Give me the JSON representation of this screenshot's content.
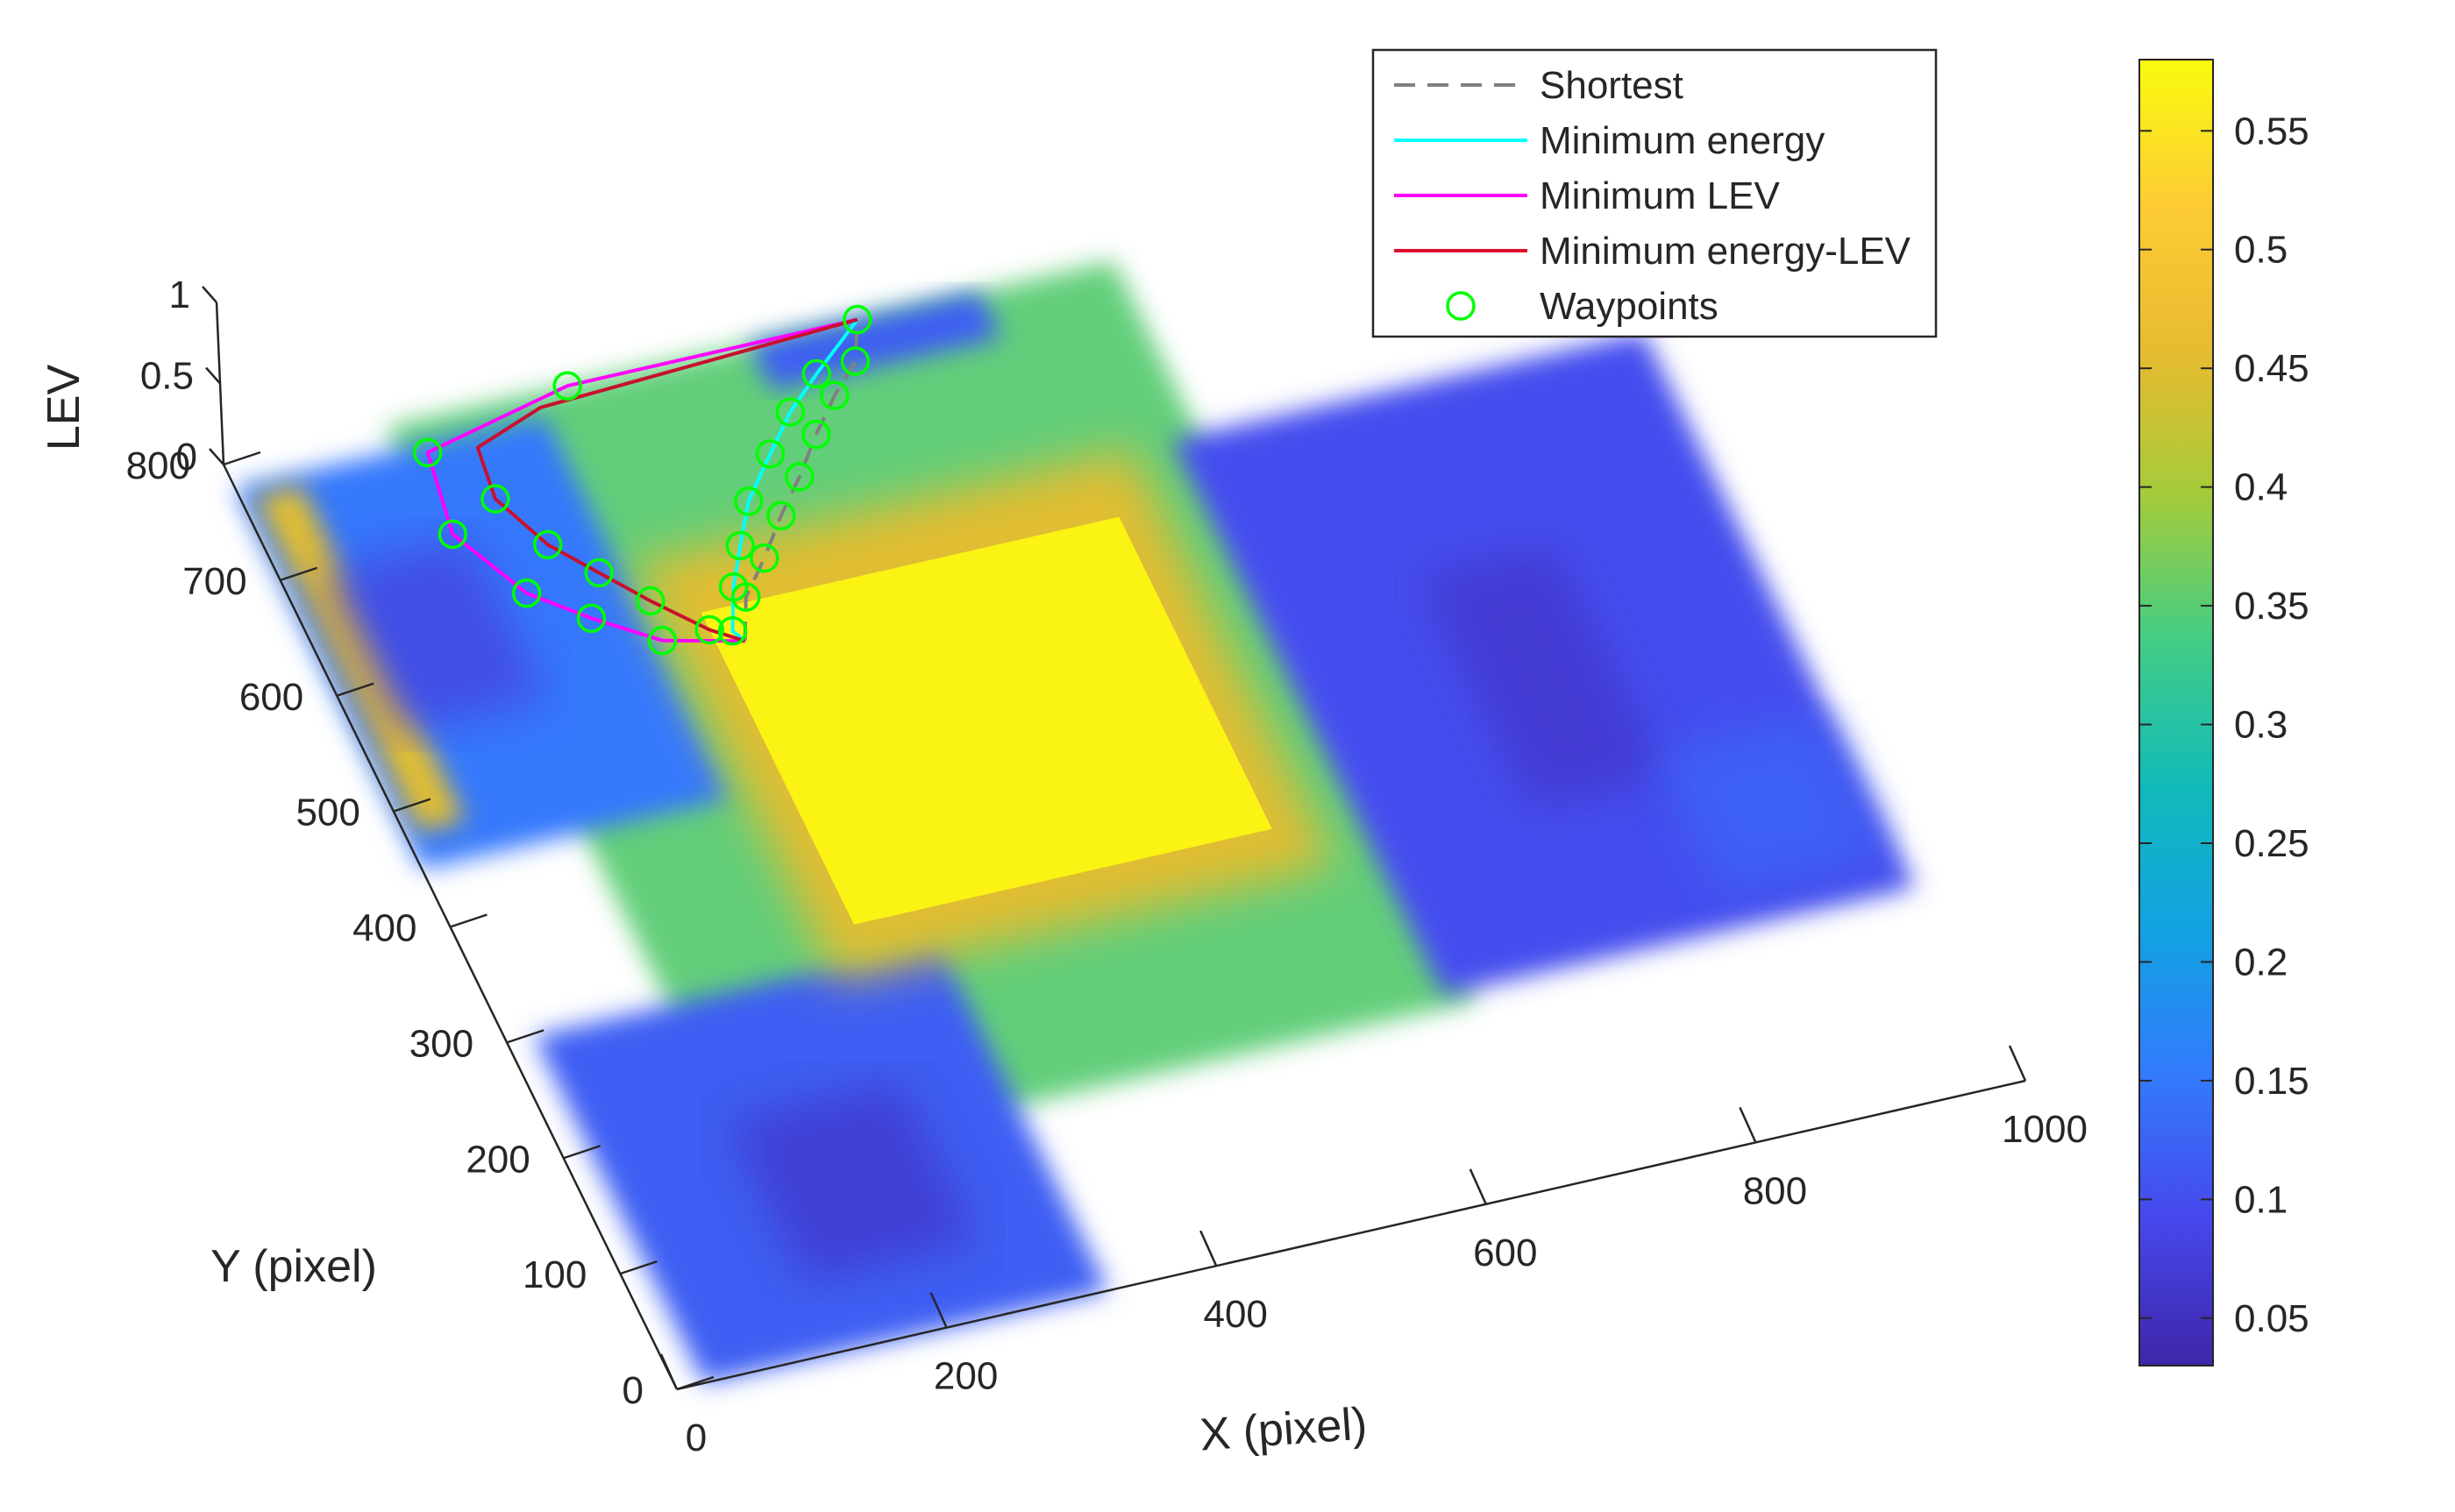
{
  "chart_data": {
    "type": "surface3d",
    "title": "",
    "xlabel": "X (pixel)",
    "ylabel": "Y (pixel)",
    "zlabel": "LEV",
    "xlim": [
      0,
      1000
    ],
    "ylim": [
      0,
      800
    ],
    "zlim": [
      0,
      1
    ],
    "x_ticks": [
      0,
      200,
      400,
      600,
      800,
      1000
    ],
    "x_tick_labels": [
      "0",
      "200",
      "400",
      "600",
      "800",
      "1000"
    ],
    "y_ticks": [
      0,
      100,
      200,
      300,
      400,
      500,
      600,
      700,
      800
    ],
    "y_tick_labels": [
      "0",
      "100",
      "200",
      "300",
      "400",
      "500",
      "600",
      "700",
      "800"
    ],
    "z_ticks": [
      0,
      0.5,
      1
    ],
    "z_tick_labels": [
      "0",
      "0.5",
      "1"
    ],
    "grid": false,
    "legend": {
      "position": "top-right",
      "entries": [
        {
          "label": "Shortest",
          "color": "#808080",
          "style": "dashed"
        },
        {
          "label": "Minimum energy",
          "color": "#00ffff",
          "style": "solid"
        },
        {
          "label": "Minimum LEV",
          "color": "#ff00ff",
          "style": "solid"
        },
        {
          "label": "Minimum energy-LEV",
          "color": "#ff0000",
          "style": "solid"
        },
        {
          "label": "Waypoints",
          "color": "#00ff00",
          "style": "circle"
        }
      ]
    },
    "colorbar": {
      "colormap": "parula",
      "min": 0.03,
      "max": 0.58,
      "ticks": [
        0.05,
        0.1,
        0.15,
        0.2,
        0.25,
        0.3,
        0.35,
        0.4,
        0.45,
        0.5,
        0.55
      ],
      "tick_labels": [
        "0.05",
        "0.1",
        "0.15",
        "0.2",
        "0.25",
        "0.3",
        "0.35",
        "0.4",
        "0.45",
        "0.5",
        "0.55"
      ]
    },
    "surface_regions": [
      {
        "name": "central-block",
        "x": [
          270,
          580
        ],
        "y": [
          330,
          600
        ],
        "value": 0.57
      },
      {
        "name": "central-block-rim",
        "x": [
          240,
          610
        ],
        "y": [
          290,
          650
        ],
        "value": 0.45
      },
      {
        "name": "corridor-floor",
        "x": [
          120,
          660
        ],
        "y": [
          160,
          800
        ],
        "value": 0.35
      },
      {
        "name": "west-wing",
        "x": [
          0,
          230
        ],
        "y": [
          450,
          780
        ],
        "value": 0.15
      },
      {
        "name": "south-wing",
        "x": [
          20,
          320
        ],
        "y": [
          0,
          300
        ],
        "value": 0.12
      },
      {
        "name": "north-wing",
        "x": [
          390,
          560
        ],
        "y": [
          760,
          800
        ],
        "value": 0.12
      },
      {
        "name": "east-wing",
        "x": [
          640,
          990
        ],
        "y": [
          170,
          650
        ],
        "value": 0.1
      },
      {
        "name": "west-strip",
        "x": [
          10,
          45
        ],
        "y": [
          480,
          770
        ],
        "value": 0.45
      }
    ],
    "series": [
      {
        "name": "Shortest",
        "x": [
          290,
          305,
          330,
          355,
          380,
          405,
          430,
          455,
          470
        ],
        "y": [
          570,
          604,
          631,
          661,
          688,
          718,
          745,
          768,
          800
        ]
      },
      {
        "name": "Minimum energy",
        "x": [
          290,
          285,
          300,
          318,
          338,
          368,
          395,
          425,
          470
        ],
        "y": [
          570,
          580,
          614,
          645,
          678,
          711,
          740,
          765,
          800
        ]
      },
      {
        "name": "Minimum LEV",
        "x": [
          290,
          235,
          195,
          160,
          130,
          140,
          255,
          470
        ],
        "y": [
          570,
          585,
          615,
          646,
          705,
          773,
          800,
          800
        ]
      },
      {
        "name": "Minimum energy-LEV",
        "x": [
          290,
          270,
          240,
          215,
          190,
          170,
          175,
          230,
          470
        ],
        "y": [
          570,
          585,
          618,
          649,
          680,
          725,
          768,
          788,
          800
        ]
      }
    ],
    "waypoints": {
      "name": "Waypoints",
      "x": [
        305,
        330,
        355,
        380,
        405,
        430,
        455,
        470,
        285,
        300,
        318,
        338,
        368,
        395,
        425,
        235,
        195,
        160,
        130,
        140,
        255,
        270,
        240,
        215,
        190,
        170
      ],
      "y": [
        604,
        631,
        661,
        688,
        718,
        745,
        768,
        800,
        580,
        614,
        645,
        678,
        711,
        740,
        765,
        585,
        615,
        646,
        705,
        773,
        800,
        585,
        618,
        649,
        680,
        725
      ]
    }
  }
}
